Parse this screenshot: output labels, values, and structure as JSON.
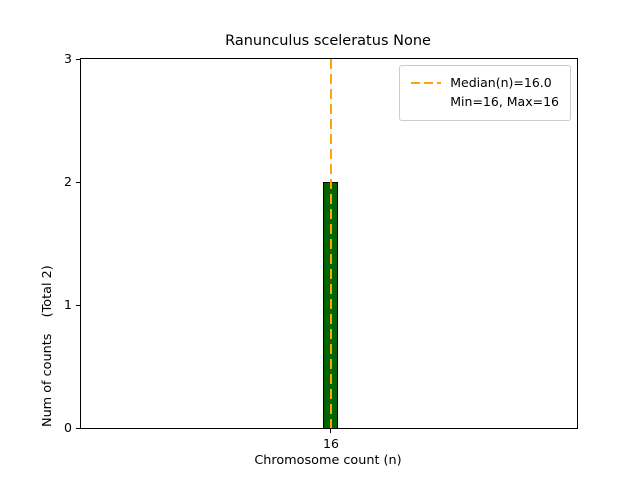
{
  "chart_data": {
    "type": "bar",
    "title": "Ranunculus sceleratus None",
    "xlabel": "Chromosome count (n)",
    "ylabel": "Num of counts    (Total 2)",
    "categories": [
      "16"
    ],
    "values": [
      2
    ],
    "ylim": [
      0,
      3
    ],
    "yticks": [
      "0",
      "1",
      "2",
      "3"
    ],
    "total_counts": 2,
    "median_value": 16.0,
    "min_value": 16,
    "max_value": 16,
    "bar_color": "#006400",
    "bar_edge_color": "#000000",
    "median_line_color": "#FFA500",
    "legend": {
      "position": "upper right",
      "entries": [
        "Median(n)=16.0",
        "Min=16, Max=16"
      ]
    },
    "grid": false
  }
}
